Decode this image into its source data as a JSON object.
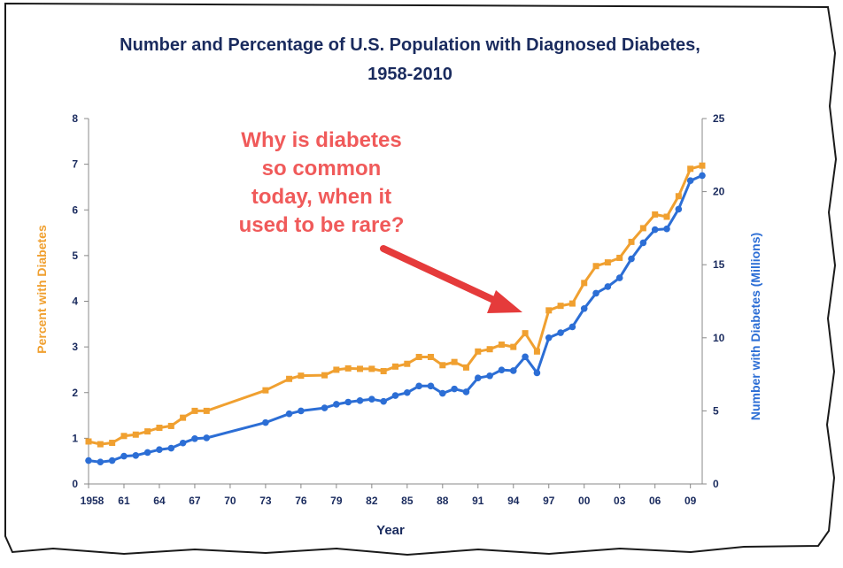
{
  "chart_data": {
    "type": "line",
    "title": "Number and Percentage of U.S. Population with Diagnosed Diabetes,",
    "subtitle": "1958-2010",
    "xlabel": "Year",
    "ylabel_left": "Percent with Diabetes",
    "ylabel_right": "Number with Diabetes (Millions)",
    "xlim": [
      1958,
      2010
    ],
    "ylim_left": [
      0,
      8
    ],
    "ylim_right": [
      0,
      25
    ],
    "x_tick_values": [
      1958,
      1961,
      1964,
      1967,
      1970,
      1973,
      1976,
      1979,
      1982,
      1985,
      1988,
      1991,
      1994,
      1997,
      2000,
      2003,
      2006,
      2009
    ],
    "x_tick_labels": [
      "1958",
      "61",
      "64",
      "67",
      "70",
      "73",
      "76",
      "79",
      "82",
      "85",
      "88",
      "91",
      "94",
      "97",
      "00",
      "03",
      "06",
      "09"
    ],
    "y_left_ticks": [
      "0",
      "1",
      "2",
      "3",
      "4",
      "5",
      "6",
      "7",
      "8"
    ],
    "y_right_ticks": [
      "0",
      "5",
      "10",
      "15",
      "20",
      "25"
    ],
    "grid": false,
    "annotation": {
      "lines": [
        "Why is diabetes",
        "so common",
        "today, when it",
        "used to be rare?"
      ],
      "color": "#f05a5a"
    },
    "colors": {
      "percent": "#f0a030",
      "number": "#2c6ed5",
      "text": "#1a2b5e"
    },
    "series": [
      {
        "name": "Percent with Diabetes",
        "axis": "left",
        "x": [
          1958,
          1959,
          1960,
          1961,
          1962,
          1963,
          1964,
          1965,
          1966,
          1967,
          1968,
          1973,
          1975,
          1976,
          1978,
          1979,
          1980,
          1981,
          1982,
          1983,
          1984,
          1985,
          1986,
          1987,
          1988,
          1989,
          1990,
          1991,
          1992,
          1993,
          1994,
          1995,
          1996,
          1997,
          1998,
          1999,
          2000,
          2001,
          2002,
          2003,
          2004,
          2005,
          2006,
          2007,
          2008,
          2009,
          2010
        ],
        "values": [
          0.93,
          0.87,
          0.9,
          1.05,
          1.08,
          1.15,
          1.23,
          1.27,
          1.45,
          1.6,
          1.6,
          2.05,
          2.3,
          2.37,
          2.38,
          2.5,
          2.53,
          2.52,
          2.52,
          2.47,
          2.57,
          2.63,
          2.78,
          2.78,
          2.6,
          2.67,
          2.55,
          2.9,
          2.95,
          3.05,
          3.0,
          3.3,
          2.9,
          3.8,
          3.9,
          3.95,
          4.4,
          4.77,
          4.85,
          4.95,
          5.3,
          5.6,
          5.9,
          5.85,
          6.3,
          6.9,
          6.97
        ]
      },
      {
        "name": "Number with Diabetes (Millions)",
        "axis": "right",
        "x": [
          1958,
          1959,
          1960,
          1961,
          1962,
          1963,
          1964,
          1965,
          1966,
          1967,
          1968,
          1973,
          1975,
          1976,
          1978,
          1979,
          1980,
          1981,
          1982,
          1983,
          1984,
          1985,
          1986,
          1987,
          1988,
          1989,
          1990,
          1991,
          1992,
          1993,
          1994,
          1995,
          1996,
          1997,
          1998,
          1999,
          2000,
          2001,
          2002,
          2003,
          2004,
          2005,
          2006,
          2007,
          2008,
          2009,
          2010
        ],
        "values": [
          1.6,
          1.5,
          1.6,
          1.9,
          1.95,
          2.15,
          2.35,
          2.45,
          2.8,
          3.1,
          3.15,
          4.2,
          4.8,
          5.0,
          5.2,
          5.45,
          5.6,
          5.7,
          5.8,
          5.65,
          6.05,
          6.25,
          6.7,
          6.7,
          6.2,
          6.5,
          6.3,
          7.25,
          7.4,
          7.8,
          7.75,
          8.7,
          7.6,
          10.0,
          10.35,
          10.75,
          12.0,
          13.05,
          13.5,
          14.1,
          15.4,
          16.5,
          17.4,
          17.45,
          18.8,
          20.75,
          21.1
        ]
      }
    ]
  }
}
